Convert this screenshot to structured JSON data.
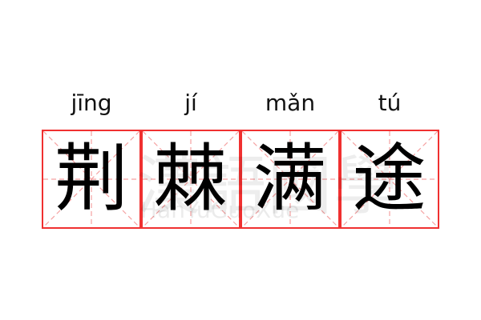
{
  "idiom": [
    {
      "pinyin": "jīng",
      "char": "荆"
    },
    {
      "pinyin": "jí",
      "char": "棘"
    },
    {
      "pinyin": "mǎn",
      "char": "满"
    },
    {
      "pinyin": "tú",
      "char": "途"
    }
  ],
  "watermark": {
    "chars": "漢語國學",
    "latin": "HanYuGuoXue"
  },
  "colors": {
    "grid_border": "#f03030",
    "guide_lines": "#f5a0a0"
  }
}
